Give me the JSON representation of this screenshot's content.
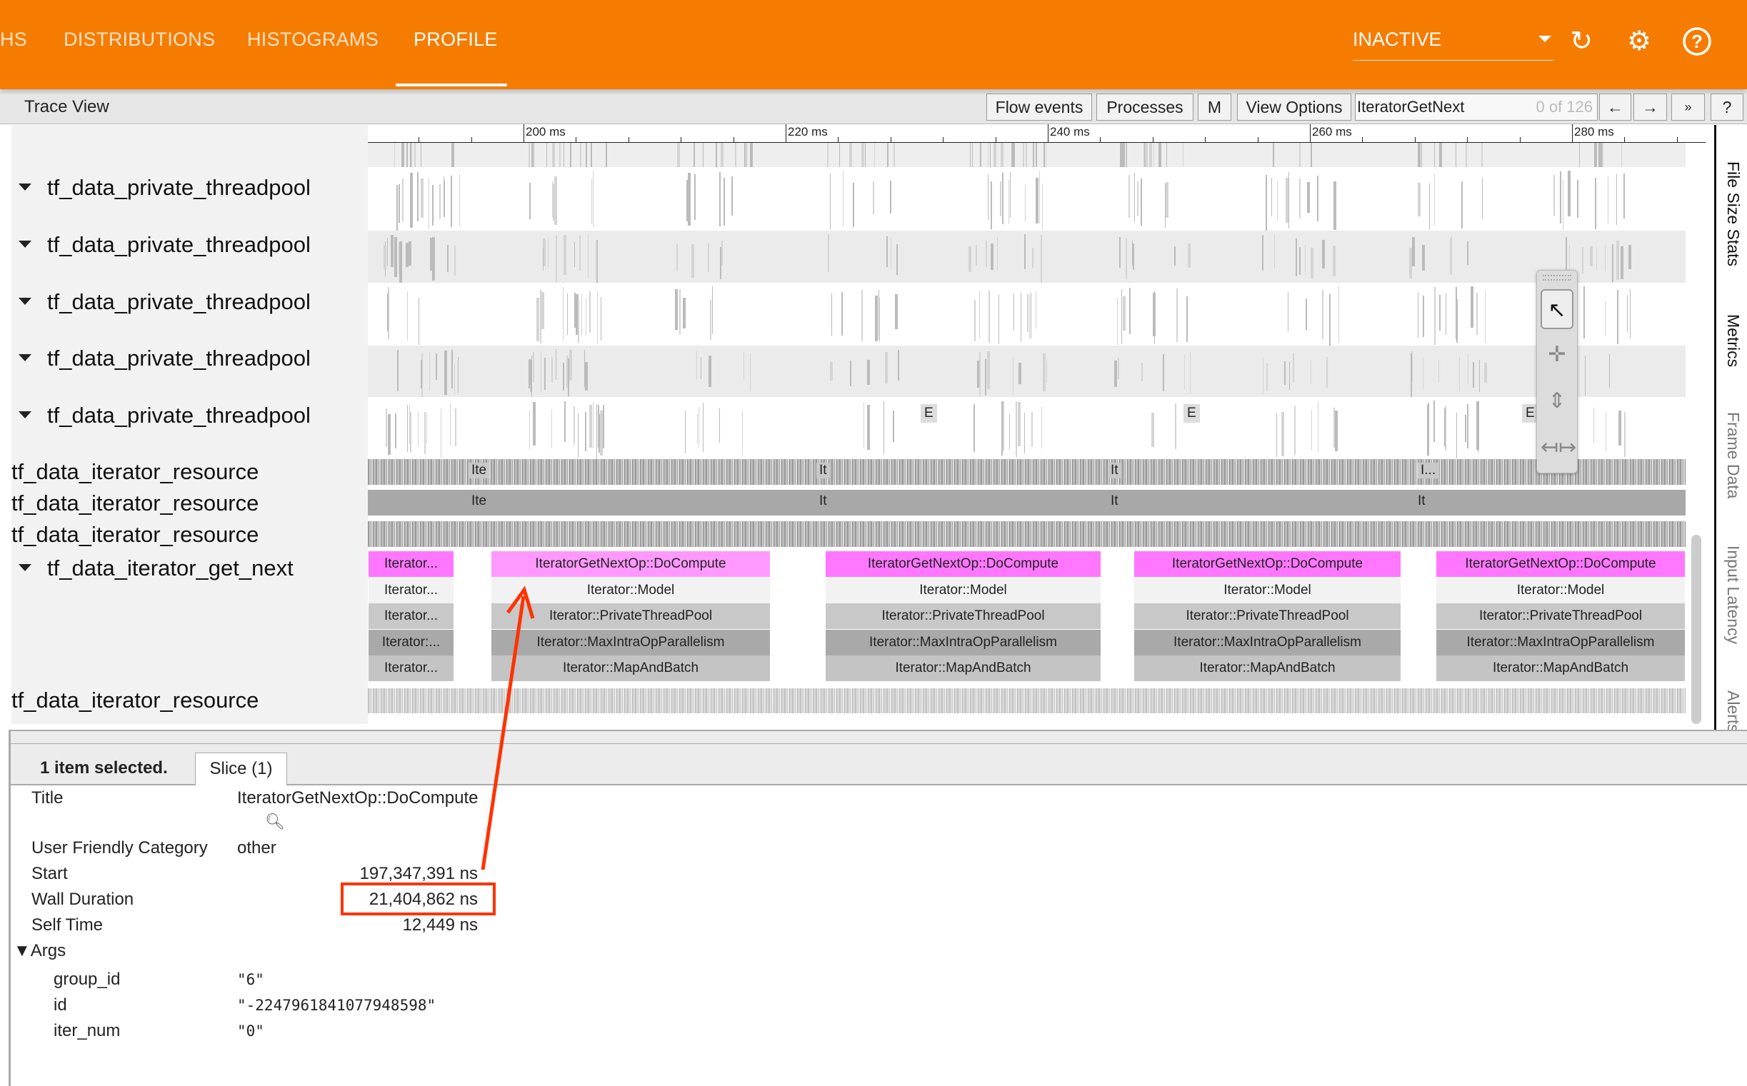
{
  "topbar": {
    "tabs": [
      {
        "label": "HS"
      },
      {
        "label": "DISTRIBUTIONS"
      },
      {
        "label": "HISTOGRAMS"
      },
      {
        "label": "PROFILE",
        "active": true
      }
    ],
    "run_select": "INACTIVE",
    "icons": [
      "refresh-icon",
      "gear-icon",
      "help-icon"
    ],
    "color": "#f57c00"
  },
  "trace_view": {
    "title": "Trace View",
    "buttons": {
      "flow_events": "Flow events",
      "processes": "Processes",
      "m": "M",
      "view_options": "View Options",
      "prev": "←",
      "next": "→",
      "more": "»",
      "help": "?"
    },
    "search": {
      "value": "IteratorGetNext",
      "count": "0 of 126"
    },
    "ruler": [
      "200 ms",
      "220 ms",
      "240 ms",
      "260 ms",
      "280 ms"
    ],
    "tracks": [
      {
        "label": "tf_data_private_threadpool"
      },
      {
        "label": "tf_data_private_threadpool"
      },
      {
        "label": "tf_data_private_threadpool"
      },
      {
        "label": "tf_data_private_threadpool"
      },
      {
        "label": "tf_data_private_threadpool"
      },
      {
        "label": "tf_data_iterator_resource"
      },
      {
        "label": "tf_data_iterator_resource"
      },
      {
        "label": "tf_data_iterator_resource"
      },
      {
        "label": "tf_data_iterator_get_next"
      },
      {
        "label": "tf_data_iterator_resource"
      }
    ],
    "event_marker": "E",
    "resource_labels_row1": [
      "Ite",
      "It",
      "It",
      "I..."
    ],
    "resource_labels_row2": [
      "Ite",
      "It",
      "It",
      "It"
    ],
    "get_next_blocks": [
      {
        "rows": [
          "Iterator...",
          "Iterator...",
          "Iterator...",
          "Iterator:...",
          "Iterator..."
        ]
      },
      {
        "rows": [
          "IteratorGetNextOp::DoCompute",
          "Iterator::Model",
          "Iterator::PrivateThreadPool",
          "Iterator::MaxIntraOpParallelism",
          "Iterator::MapAndBatch"
        ],
        "selected": true
      },
      {
        "rows": [
          "IteratorGetNextOp::DoCompute",
          "Iterator::Model",
          "Iterator::PrivateThreadPool",
          "Iterator::MaxIntraOpParallelism",
          "Iterator::MapAndBatch"
        ]
      },
      {
        "rows": [
          "IteratorGetNextOp::DoCompute",
          "Iterator::Model",
          "Iterator::PrivateThreadPool",
          "Iterator::MaxIntraOpParallelism",
          "Iterator::MapAndBatch"
        ]
      },
      {
        "rows": [
          "IteratorGetNextOp::DoCompute",
          "Iterator::Model",
          "Iterator::PrivateThreadPool",
          "Iterator::MaxIntraOpParallelism",
          "Iterator::MapAndBatch"
        ]
      }
    ],
    "slice_colors": {
      "top": "#ff77ff",
      "top_selected": "#ff99ff",
      "model": "#f2f2f2",
      "private_thread_pool": "#c8c8c8",
      "max_intra": "#a9a9a9",
      "map_and_batch": "#c4c4c4"
    },
    "tools": [
      "select-pointer-icon",
      "pan-icon",
      "zoom-icon",
      "timing-icon"
    ],
    "side_tabs": [
      "File Size Stats",
      "Metrics",
      "Frame Data",
      "Input Latency",
      "Alerts"
    ]
  },
  "details": {
    "selection": "1 item selected.",
    "tab": "Slice (1)",
    "rows": {
      "title": {
        "label": "Title",
        "value": "IteratorGetNextOp::DoCompute"
      },
      "category": {
        "label": "User Friendly Category",
        "value": "other"
      },
      "start": {
        "label": "Start",
        "value": "197,347,391 ns"
      },
      "wall": {
        "label": "Wall Duration",
        "value": "21,404,862 ns"
      },
      "self": {
        "label": "Self Time",
        "value": "12,449 ns"
      }
    },
    "args_label": "▼Args",
    "args": [
      {
        "key": "group_id",
        "value": "\"6\""
      },
      {
        "key": "id",
        "value": "\"-2247961841077948598\""
      },
      {
        "key": "iter_num",
        "value": "\"0\""
      }
    ],
    "annotation_color": "#ff3300"
  }
}
